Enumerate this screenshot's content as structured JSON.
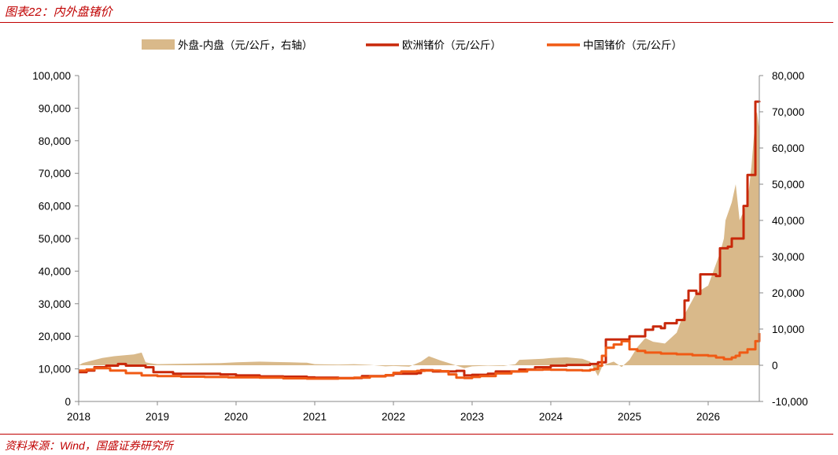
{
  "header": {
    "title": "图表22：内外盘锗价"
  },
  "footer": {
    "source": "资料来源：Wind，国盛证券研究所"
  },
  "colors": {
    "accent": "#c00000",
    "spread": "#d9b98a",
    "europe": "#c8280a",
    "china": "#f05a14"
  },
  "chart_data": {
    "type": "line",
    "title": "",
    "xlabel": "",
    "ylabel": "",
    "x_ticks": [
      "2018",
      "2019",
      "2020",
      "2021",
      "2022",
      "2023",
      "2024",
      "2025",
      "2026"
    ],
    "x_range": [
      2018,
      2026.65
    ],
    "y_left": {
      "min": 0,
      "max": 100000,
      "step": 10000,
      "ticks": [
        "0",
        "10,000",
        "20,000",
        "30,000",
        "40,000",
        "50,000",
        "60,000",
        "70,000",
        "80,000",
        "90,000",
        "100,000"
      ]
    },
    "y_right": {
      "min": -10000,
      "max": 80000,
      "step": 10000,
      "ticks": [
        "-10,000",
        "0",
        "10,000",
        "20,000",
        "30,000",
        "40,000",
        "50,000",
        "60,000",
        "70,000",
        "80,000"
      ]
    },
    "legend_position": "top",
    "series": [
      {
        "name": "外盘-内盘（元/公斤，右轴）",
        "type": "area",
        "axis": "right",
        "x": [
          2018.0,
          2018.05,
          2018.15,
          2018.3,
          2018.45,
          2018.6,
          2018.7,
          2018.8,
          2018.85,
          2018.9,
          2019.0,
          2019.2,
          2019.5,
          2019.8,
          2020.0,
          2020.3,
          2020.5,
          2020.7,
          2020.9,
          2021.0,
          2021.3,
          2021.5,
          2021.7,
          2021.9,
          2022.0,
          2022.2,
          2022.35,
          2022.45,
          2022.6,
          2022.75,
          2022.9,
          2023.0,
          2023.2,
          2023.4,
          2023.55,
          2023.6,
          2023.9,
          2024.0,
          2024.2,
          2024.4,
          2024.5,
          2024.55,
          2024.6,
          2024.65,
          2024.7,
          2024.8,
          2024.9,
          2025.0,
          2025.1,
          2025.2,
          2025.3,
          2025.45,
          2025.6,
          2025.65,
          2025.8,
          2025.85,
          2026.0,
          2026.1,
          2026.15,
          2026.2,
          2026.22,
          2026.3,
          2026.35,
          2026.4,
          2026.5,
          2026.55,
          2026.6,
          2026.62,
          2026.65
        ],
        "y": [
          0,
          600,
          1200,
          2000,
          2500,
          2800,
          3000,
          3500,
          800,
          600,
          300,
          400,
          500,
          600,
          800,
          1000,
          900,
          800,
          700,
          300,
          200,
          300,
          100,
          -300,
          -200,
          -400,
          1000,
          2500,
          1300,
          300,
          -800,
          -300,
          -100,
          -200,
          300,
          1500,
          1800,
          2000,
          2200,
          1800,
          1000,
          -1000,
          -3000,
          -500,
          300,
          1000,
          -500,
          1500,
          5000,
          7500,
          6500,
          6000,
          9000,
          12000,
          18000,
          20000,
          22000,
          28000,
          31000,
          35000,
          40000,
          45000,
          50000,
          40000,
          45000,
          55000,
          68000,
          70000,
          65000
        ]
      },
      {
        "name": "欧洲锗价（元/公斤）",
        "type": "line",
        "axis": "left",
        "x": [
          2018.0,
          2018.1,
          2018.2,
          2018.35,
          2018.5,
          2018.6,
          2018.85,
          2018.95,
          2019.0,
          2019.2,
          2019.5,
          2019.8,
          2020.0,
          2020.3,
          2020.6,
          2020.9,
          2021.0,
          2021.3,
          2021.6,
          2021.9,
          2022.0,
          2022.3,
          2022.35,
          2022.5,
          2022.8,
          2022.9,
          2023.0,
          2023.2,
          2023.3,
          2023.6,
          2023.8,
          2024.0,
          2024.2,
          2024.5,
          2024.6,
          2024.7,
          2025.0,
          2025.2,
          2025.3,
          2025.4,
          2025.45,
          2025.6,
          2025.7,
          2025.75,
          2025.85,
          2025.9,
          2026.0,
          2026.1,
          2026.15,
          2026.25,
          2026.3,
          2026.45,
          2026.5,
          2026.55,
          2026.6,
          2026.65
        ],
        "y": [
          9000,
          9500,
          10500,
          11000,
          11500,
          11000,
          10500,
          9000,
          9000,
          8500,
          8500,
          8300,
          8000,
          7700,
          7600,
          7400,
          7300,
          7200,
          7800,
          8000,
          8500,
          8700,
          9600,
          9200,
          9400,
          8000,
          8200,
          8500,
          9200,
          9800,
          10500,
          11000,
          11200,
          11500,
          12000,
          19000,
          20000,
          22000,
          23000,
          22500,
          24000,
          25000,
          31000,
          34000,
          33000,
          39000,
          39000,
          38500,
          47000,
          47500,
          50000,
          60000,
          69500,
          69500,
          92000,
          91800
        ]
      },
      {
        "name": "中国锗价（元/公斤）",
        "type": "line",
        "axis": "left",
        "x": [
          2018.0,
          2018.1,
          2018.2,
          2018.4,
          2018.6,
          2018.8,
          2019.0,
          2019.3,
          2019.6,
          2019.9,
          2020.0,
          2020.3,
          2020.6,
          2020.9,
          2021.0,
          2021.3,
          2021.5,
          2021.7,
          2021.9,
          2022.0,
          2022.1,
          2022.3,
          2022.4,
          2022.6,
          2022.7,
          2022.8,
          2022.9,
          2023.0,
          2023.1,
          2023.3,
          2023.5,
          2023.7,
          2023.9,
          2024.0,
          2024.2,
          2024.4,
          2024.5,
          2024.55,
          2024.6,
          2024.65,
          2024.7,
          2024.8,
          2024.9,
          2025.0,
          2025.1,
          2025.2,
          2025.4,
          2025.6,
          2025.8,
          2026.0,
          2026.1,
          2026.2,
          2026.3,
          2026.35,
          2026.4,
          2026.5,
          2026.6,
          2026.65
        ],
        "y": [
          9500,
          9800,
          10200,
          9500,
          8700,
          8000,
          7800,
          7600,
          7500,
          7400,
          7400,
          7300,
          7100,
          7000,
          7000,
          7100,
          7300,
          7700,
          8100,
          8800,
          9200,
          9400,
          9500,
          9300,
          8300,
          7300,
          7200,
          7500,
          7800,
          8600,
          9200,
          9700,
          9800,
          9700,
          9600,
          9500,
          9700,
          10000,
          11000,
          14000,
          16500,
          17500,
          18500,
          16000,
          15500,
          15000,
          14700,
          14500,
          14200,
          14000,
          13500,
          13000,
          13500,
          14000,
          15000,
          16000,
          18500,
          21000
        ]
      }
    ]
  }
}
